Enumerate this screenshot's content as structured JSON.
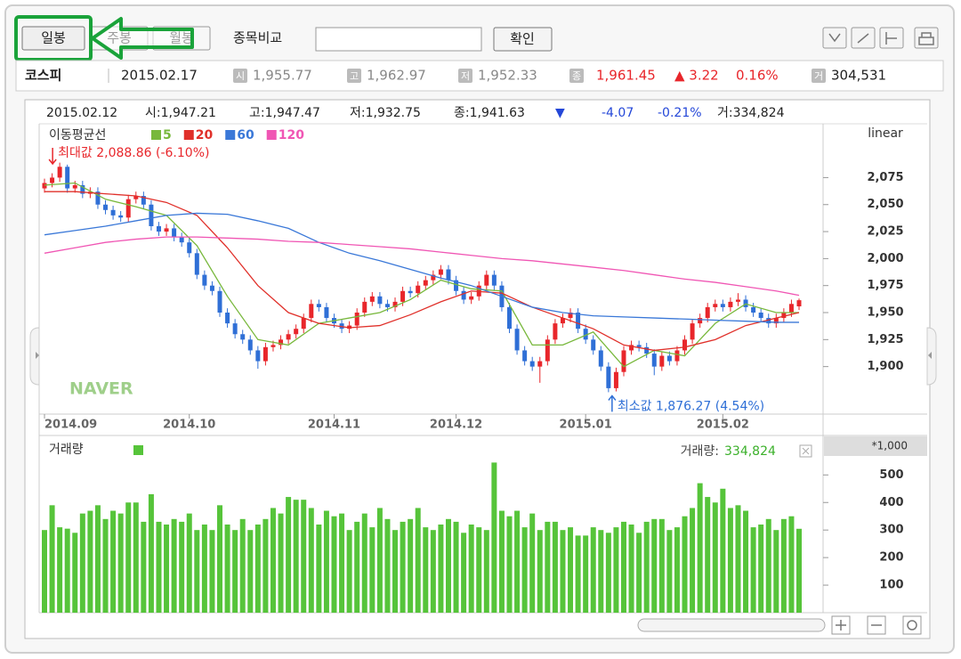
{
  "toolbar": {
    "tabs": [
      "일봉",
      "주봉",
      "월봉"
    ],
    "compare": "종목비교",
    "confirm": "확인"
  },
  "quote": {
    "name": "코스피",
    "date": "2015.02.17",
    "items": [
      {
        "tag": "시",
        "value": "1,955.77"
      },
      {
        "tag": "고",
        "value": "1,962.97"
      },
      {
        "tag": "저",
        "value": "1,952.33"
      },
      {
        "tag": "종",
        "value": "1,961.45"
      }
    ],
    "change": "▲ 3.22",
    "change_pct": "0.16%",
    "volume_tag": "거",
    "volume": "304,531"
  },
  "watermark": "NAVER",
  "chart_data": [
    {
      "type": "candlestick",
      "info": {
        "date": "2015.02.12",
        "open": "시:1,947.21",
        "high": "고:1,947.47",
        "low": "저:1,932.75",
        "close": "종:1,941.63",
        "direction": "▼",
        "change": "-4.07",
        "change_pct": "-0.21%",
        "volume": "거:334,824"
      },
      "legend_title": "이동평균선",
      "scale": "linear",
      "categories": [
        "2014.09",
        null,
        null,
        null,
        null,
        null,
        null,
        null,
        null,
        null,
        null,
        null,
        null,
        null,
        null,
        null,
        null,
        null,
        null,
        "2014.10",
        null,
        null,
        null,
        null,
        null,
        null,
        null,
        null,
        null,
        null,
        null,
        null,
        null,
        null,
        null,
        null,
        null,
        null,
        "2014.11",
        null,
        null,
        null,
        null,
        null,
        null,
        null,
        null,
        null,
        null,
        null,
        null,
        null,
        null,
        null,
        "2014.12",
        null,
        null,
        null,
        null,
        null,
        null,
        null,
        null,
        null,
        null,
        null,
        null,
        null,
        null,
        null,
        null,
        "2015.01",
        null,
        null,
        null,
        null,
        null,
        null,
        null,
        null,
        null,
        null,
        null,
        null,
        null,
        null,
        null,
        null,
        null,
        "2015.02",
        null,
        null,
        null,
        null,
        null,
        null,
        null,
        null,
        null,
        null
      ],
      "open": [
        2065,
        2070,
        2075,
        2085,
        2065,
        2068,
        2060,
        2062,
        2050,
        2045,
        2040,
        2038,
        2055,
        2058,
        2050,
        2030,
        2025,
        2028,
        2020,
        2015,
        2005,
        1985,
        1975,
        1970,
        1950,
        1940,
        1930,
        1925,
        1915,
        1905,
        1918,
        1920,
        1925,
        1930,
        1935,
        1945,
        1958,
        1955,
        1945,
        1940,
        1935,
        1938,
        1950,
        1960,
        1965,
        1958,
        1955,
        1960,
        1970,
        1968,
        1975,
        1980,
        1985,
        1990,
        1980,
        1970,
        1962,
        1965,
        1975,
        1985,
        1975,
        1955,
        1935,
        1915,
        1905,
        1900,
        1905,
        1925,
        1940,
        1945,
        1950,
        1935,
        1925,
        1915,
        1900,
        1880,
        1895,
        1915,
        1920,
        1918,
        1912,
        1900,
        1910,
        1905,
        1915,
        1925,
        1940,
        1945,
        1955,
        1958,
        1955,
        1960,
        1962,
        1955,
        1950,
        1945,
        1940,
        1945,
        1950,
        1955.77
      ],
      "high": [
        2074,
        2079,
        2088.86,
        2087,
        2072,
        2072,
        2066,
        2066,
        2054,
        2049,
        2044,
        2059,
        2062,
        2062,
        2054,
        2034,
        2032,
        2032,
        2024,
        2019,
        2009,
        1989,
        1979,
        1974,
        1954,
        1944,
        1934,
        1929,
        1919,
        1922,
        1924,
        1929,
        1934,
        1939,
        1949,
        1962,
        1962,
        1959,
        1949,
        1944,
        1942,
        1954,
        1964,
        1969,
        1969,
        1962,
        1964,
        1974,
        1974,
        1979,
        1984,
        1989,
        1994,
        1994,
        1984,
        1974,
        1969,
        1979,
        1989,
        1989,
        1979,
        1959,
        1939,
        1919,
        1909,
        1909,
        1929,
        1944,
        1949,
        1954,
        1954,
        1939,
        1929,
        1919,
        1904,
        1899,
        1919,
        1924,
        1924,
        1922,
        1916,
        1914,
        1914,
        1919,
        1929,
        1944,
        1949,
        1959,
        1962,
        1962,
        1964,
        1968,
        1966,
        1959,
        1954,
        1949,
        1949,
        1954,
        1962,
        1962.97
      ],
      "low": [
        2061,
        2066,
        2071,
        2061,
        2061,
        2056,
        2056,
        2046,
        2041,
        2036,
        2034,
        2034,
        2051,
        2046,
        2026,
        2021,
        2021,
        2016,
        2011,
        2001,
        1981,
        1971,
        1966,
        1946,
        1936,
        1926,
        1921,
        1911,
        1898,
        1901,
        1914,
        1916,
        1921,
        1926,
        1931,
        1941,
        1951,
        1941,
        1936,
        1931,
        1931,
        1934,
        1946,
        1956,
        1954,
        1951,
        1951,
        1956,
        1964,
        1964,
        1971,
        1976,
        1981,
        1976,
        1966,
        1958,
        1958,
        1961,
        1971,
        1971,
        1951,
        1931,
        1911,
        1901,
        1896,
        1885,
        1901,
        1921,
        1936,
        1941,
        1931,
        1921,
        1911,
        1896,
        1876.27,
        1877,
        1891,
        1911,
        1914,
        1908,
        1892,
        1896,
        1901,
        1901,
        1911,
        1921,
        1936,
        1941,
        1951,
        1951,
        1951,
        1956,
        1951,
        1946,
        1941,
        1936,
        1936,
        1941,
        1946,
        1952.33
      ],
      "close": [
        2070,
        2075,
        2085,
        2065,
        2068,
        2060,
        2062,
        2050,
        2045,
        2040,
        2038,
        2055,
        2058,
        2050,
        2030,
        2025,
        2028,
        2020,
        2015,
        2005,
        1985,
        1975,
        1970,
        1950,
        1940,
        1930,
        1925,
        1915,
        1905,
        1918,
        1920,
        1925,
        1930,
        1935,
        1945,
        1958,
        1955,
        1945,
        1940,
        1935,
        1938,
        1950,
        1960,
        1965,
        1958,
        1955,
        1960,
        1970,
        1968,
        1975,
        1980,
        1985,
        1990,
        1980,
        1970,
        1962,
        1965,
        1975,
        1985,
        1975,
        1955,
        1935,
        1915,
        1905,
        1900,
        1905,
        1925,
        1940,
        1945,
        1950,
        1935,
        1925,
        1915,
        1900,
        1880,
        1895,
        1915,
        1920,
        1918,
        1912,
        1900,
        1910,
        1905,
        1915,
        1925,
        1940,
        1945,
        1955,
        1958,
        1955,
        1960,
        1962,
        1955,
        1950,
        1945,
        1940,
        1945,
        1950,
        1958,
        1961.45
      ],
      "up_color": "#e8262b",
      "down_color": "#2f6fd6",
      "series": [
        {
          "name": "5",
          "color": "#78b83c",
          "x": [
            0,
            4,
            8,
            12,
            16,
            20,
            24,
            28,
            32,
            36,
            40,
            44,
            48,
            52,
            56,
            60,
            64,
            68,
            72,
            76,
            80,
            84,
            88,
            92,
            96,
            99
          ],
          "values": [
            2068,
            2070,
            2055,
            2048,
            2040,
            2012,
            1965,
            1925,
            1920,
            1940,
            1945,
            1950,
            1962,
            1980,
            1972,
            1970,
            1920,
            1920,
            1932,
            1900,
            1915,
            1910,
            1940,
            1958,
            1950,
            1950
          ]
        },
        {
          "name": "20",
          "color": "#e0302a",
          "x": [
            0,
            4,
            8,
            12,
            16,
            20,
            24,
            28,
            32,
            36,
            40,
            44,
            48,
            52,
            56,
            60,
            64,
            68,
            72,
            76,
            80,
            84,
            88,
            92,
            96,
            99
          ],
          "values": [
            2062,
            2062,
            2060,
            2058,
            2052,
            2040,
            2010,
            1975,
            1950,
            1940,
            1936,
            1938,
            1948,
            1960,
            1970,
            1968,
            1955,
            1945,
            1935,
            1920,
            1915,
            1918,
            1925,
            1938,
            1945,
            1950
          ]
        },
        {
          "name": "60",
          "color": "#3a78d8",
          "x": [
            0,
            4,
            8,
            12,
            16,
            20,
            24,
            28,
            32,
            36,
            40,
            44,
            48,
            52,
            56,
            60,
            64,
            68,
            72,
            76,
            80,
            84,
            88,
            92,
            96,
            99
          ],
          "values": [
            2022,
            2026,
            2030,
            2035,
            2040,
            2042,
            2041,
            2035,
            2028,
            2015,
            2005,
            1998,
            1990,
            1982,
            1975,
            1965,
            1955,
            1950,
            1947,
            1946,
            1945,
            1944,
            1943,
            1942,
            1941,
            1941
          ]
        },
        {
          "name": "120",
          "color": "#f056b4",
          "x": [
            0,
            4,
            8,
            12,
            16,
            20,
            24,
            28,
            32,
            36,
            40,
            44,
            48,
            52,
            56,
            60,
            64,
            68,
            72,
            76,
            80,
            84,
            88,
            92,
            96,
            99
          ],
          "values": [
            2005,
            2010,
            2015,
            2018,
            2020,
            2020,
            2019,
            2018,
            2016,
            2015,
            2013,
            2011,
            2009,
            2006,
            2003,
            2000,
            1998,
            1995,
            1992,
            1989,
            1985,
            1981,
            1978,
            1974,
            1970,
            1966
          ]
        }
      ],
      "ylim": [
        1856,
        2124
      ],
      "yticks": [
        {
          "value": 1900,
          "label": "1,900"
        },
        {
          "value": 1925,
          "label": "1,925"
        },
        {
          "value": 1950,
          "label": "1,950"
        },
        {
          "value": 1975,
          "label": "1,975"
        },
        {
          "value": 2000,
          "label": "2,000"
        },
        {
          "value": 2025,
          "label": "2,025"
        },
        {
          "value": 2050,
          "label": "2,050"
        },
        {
          "value": 2075,
          "label": "2,075"
        }
      ],
      "annotations": [
        {
          "text": "최대값 2,088.86 (-6.10%)",
          "color": "#e8262b"
        },
        {
          "text": "최소값 1,876.27 (4.54%)",
          "color": "#2f6fd6"
        }
      ]
    },
    {
      "type": "bar",
      "title": "거래량",
      "unit": "*1,000",
      "color": "#56c43a",
      "readout_label": "거래량:",
      "readout_value": "334,824",
      "values": [
        300,
        390,
        310,
        305,
        290,
        360,
        370,
        390,
        340,
        370,
        360,
        400,
        400,
        330,
        430,
        330,
        320,
        340,
        330,
        360,
        300,
        320,
        300,
        390,
        320,
        300,
        340,
        300,
        320,
        340,
        380,
        360,
        420,
        410,
        410,
        380,
        320,
        370,
        350,
        360,
        300,
        330,
        360,
        310,
        380,
        340,
        300,
        330,
        340,
        380,
        310,
        300,
        320,
        340,
        330,
        290,
        320,
        310,
        300,
        545,
        370,
        350,
        370,
        310,
        360,
        300,
        330,
        330,
        300,
        310,
        280,
        280,
        310,
        300,
        290,
        310,
        330,
        320,
        290,
        330,
        340,
        340,
        300,
        310,
        350,
        380,
        470,
        420,
        400,
        450,
        380,
        390,
        370,
        310,
        320,
        340,
        300,
        340,
        350,
        304.531
      ],
      "ylim": [
        0,
        640
      ],
      "yticks": [
        100,
        200,
        300,
        400,
        500
      ]
    }
  ]
}
